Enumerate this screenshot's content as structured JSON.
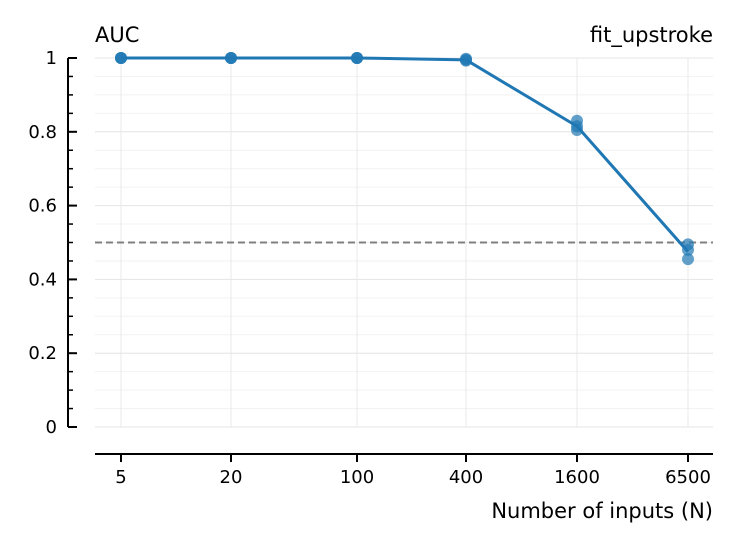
{
  "chart_data": {
    "type": "line",
    "title": "fit_upstroke",
    "ylabel": "AUC",
    "xlabel": "Number of inputs (N)",
    "categories": [
      "5",
      "20",
      "100",
      "400",
      "1600",
      "6500"
    ],
    "series": [
      {
        "values": [
          1.0,
          1.0,
          1.0,
          0.995,
          0.815,
          0.475
        ],
        "color": "#1f77b4"
      }
    ],
    "points": [
      {
        "category": "5",
        "values": [
          1.0,
          1.0,
          1.0
        ]
      },
      {
        "category": "20",
        "values": [
          1.0,
          1.0,
          1.0
        ]
      },
      {
        "category": "100",
        "values": [
          1.0,
          1.0,
          1.0
        ]
      },
      {
        "category": "400",
        "values": [
          0.998,
          0.995,
          0.993
        ]
      },
      {
        "category": "1600",
        "values": [
          0.83,
          0.815,
          0.805
        ]
      },
      {
        "category": "6500",
        "values": [
          0.495,
          0.48,
          0.455
        ]
      }
    ],
    "reference_line": {
      "y": 0.5,
      "style": "dashed",
      "color": "#808080"
    },
    "ylim": [
      0,
      1
    ],
    "yticks": [
      "0",
      "0.2",
      "0.4",
      "0.6",
      "0.8",
      "1"
    ],
    "ytick_values": [
      0,
      0.2,
      0.4,
      0.6,
      0.8,
      1
    ],
    "minor_ytick_step": 0.05,
    "grid": true,
    "colors": {
      "line": "#1f77b4",
      "grid": "#e6e6e6",
      "reference": "#808080"
    }
  }
}
